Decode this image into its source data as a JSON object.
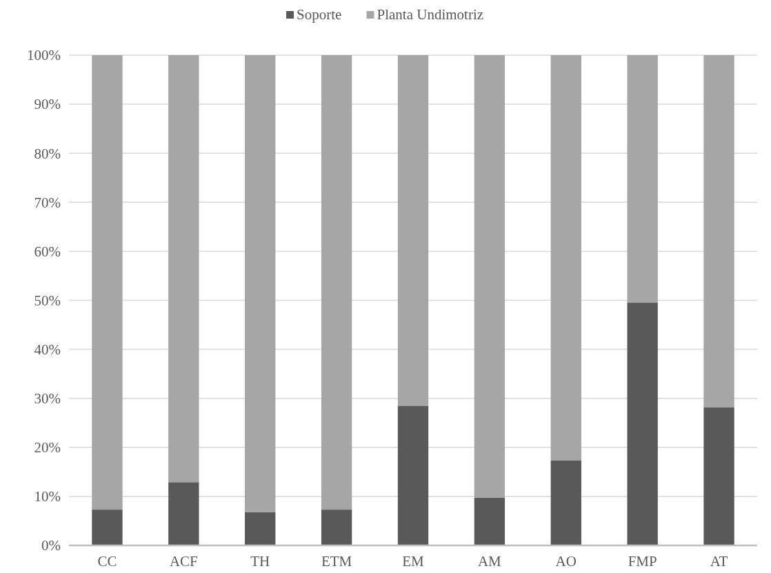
{
  "chart_data": {
    "type": "bar",
    "stacked": true,
    "categories": [
      "CC",
      "ACF",
      "TH",
      "ETM",
      "EM",
      "AM",
      "AO",
      "FMP",
      "AT"
    ],
    "series": [
      {
        "name": "Soporte",
        "color": "#595959",
        "values": [
          7.3,
          12.9,
          6.8,
          7.3,
          28.5,
          9.7,
          17.3,
          49.5,
          28.2
        ]
      },
      {
        "name": "Planta Undimotriz",
        "color": "#a6a6a6",
        "values": [
          92.7,
          87.1,
          93.2,
          92.7,
          71.5,
          90.3,
          82.7,
          50.5,
          71.8
        ]
      }
    ],
    "ylim": [
      0,
      100
    ],
    "yticks": [
      {
        "value": 0,
        "label": "0%"
      },
      {
        "value": 10,
        "label": "10%"
      },
      {
        "value": 20,
        "label": "20%"
      },
      {
        "value": 30,
        "label": "30%"
      },
      {
        "value": 40,
        "label": "40%"
      },
      {
        "value": 50,
        "label": "50%"
      },
      {
        "value": 60,
        "label": "60%"
      },
      {
        "value": 70,
        "label": "70%"
      },
      {
        "value": 80,
        "label": "80%"
      },
      {
        "value": 90,
        "label": "90%"
      },
      {
        "value": 100,
        "label": "100%"
      }
    ],
    "grid": "y",
    "legend": "top"
  }
}
